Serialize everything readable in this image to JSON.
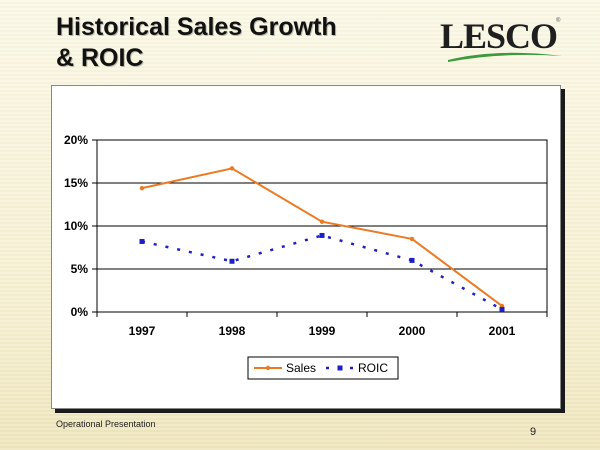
{
  "slide": {
    "title_line1": "Historical Sales Growth",
    "title_line2": "& ROIC",
    "logo_text": "LESCO",
    "logo_mark": "®",
    "footer_left": "Operational Presentation",
    "page_number": "9"
  },
  "colors": {
    "sales": "#ec7a22",
    "roic": "#1f1fc8",
    "logo_green": "#3c9a3c"
  },
  "chart_data": {
    "type": "line",
    "categories": [
      "1997",
      "1998",
      "1999",
      "2000",
      "2001"
    ],
    "series": [
      {
        "name": "Sales",
        "values": [
          14.4,
          16.7,
          10.5,
          8.5,
          0.7
        ],
        "style": "solid"
      },
      {
        "name": "ROIC",
        "values": [
          8.2,
          5.9,
          8.9,
          6.0,
          0.3
        ],
        "style": "dashed"
      }
    ],
    "ylim": [
      0,
      20
    ],
    "yticks": [
      0,
      5,
      10,
      15,
      20
    ],
    "ytick_labels": [
      "0%",
      "5%",
      "10%",
      "15%",
      "20%"
    ],
    "legend_position": "bottom",
    "grid": true,
    "title": "",
    "xlabel": "",
    "ylabel": ""
  }
}
